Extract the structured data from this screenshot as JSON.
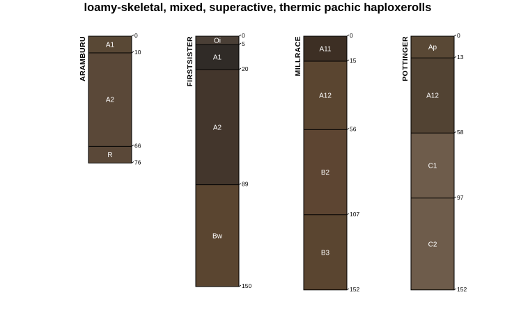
{
  "title": "loamy-skeletal, mixed, superactive, thermic pachic haploxerolls",
  "chart_data": {
    "type": "soil-profile-sketch",
    "title": "loamy-skeletal, mixed, superactive, thermic pachic haploxerolls",
    "depth_unit": "",
    "depth_axis": "increasing downward",
    "profiles": [
      {
        "name": "ARAMBURU",
        "horizons": [
          {
            "name": "A1",
            "top": 0,
            "bottom": 10,
            "color": "#594835"
          },
          {
            "name": "A2",
            "top": 10,
            "bottom": 66,
            "color": "#5a4838"
          },
          {
            "name": "R",
            "top": 66,
            "bottom": 76,
            "color": "#5a4838"
          }
        ]
      },
      {
        "name": "FIRSTSISTER",
        "horizons": [
          {
            "name": "Oi",
            "top": 0,
            "bottom": 5,
            "color": "#4a3f36"
          },
          {
            "name": "A1",
            "top": 5,
            "bottom": 20,
            "color": "#302b27"
          },
          {
            "name": "A2",
            "top": 20,
            "bottom": 89,
            "color": "#43362c"
          },
          {
            "name": "Bw",
            "top": 89,
            "bottom": 150,
            "color": "#5a4530"
          }
        ]
      },
      {
        "name": "MILLRACE",
        "horizons": [
          {
            "name": "A11",
            "top": 0,
            "bottom": 15,
            "color": "#3d2f24"
          },
          {
            "name": "A12",
            "top": 15,
            "bottom": 56,
            "color": "#5a4530"
          },
          {
            "name": "B2",
            "top": 56,
            "bottom": 107,
            "color": "#5d4532"
          },
          {
            "name": "B3",
            "top": 107,
            "bottom": 152,
            "color": "#5a4530"
          }
        ]
      },
      {
        "name": "POTTINGER",
        "horizons": [
          {
            "name": "Ap",
            "top": 0,
            "bottom": 13,
            "color": "#594835"
          },
          {
            "name": "A12",
            "top": 13,
            "bottom": 58,
            "color": "#524333"
          },
          {
            "name": "C1",
            "top": 58,
            "bottom": 97,
            "color": "#6e5c4b"
          },
          {
            "name": "C2",
            "top": 97,
            "bottom": 152,
            "color": "#6e5c4b"
          }
        ]
      }
    ]
  }
}
